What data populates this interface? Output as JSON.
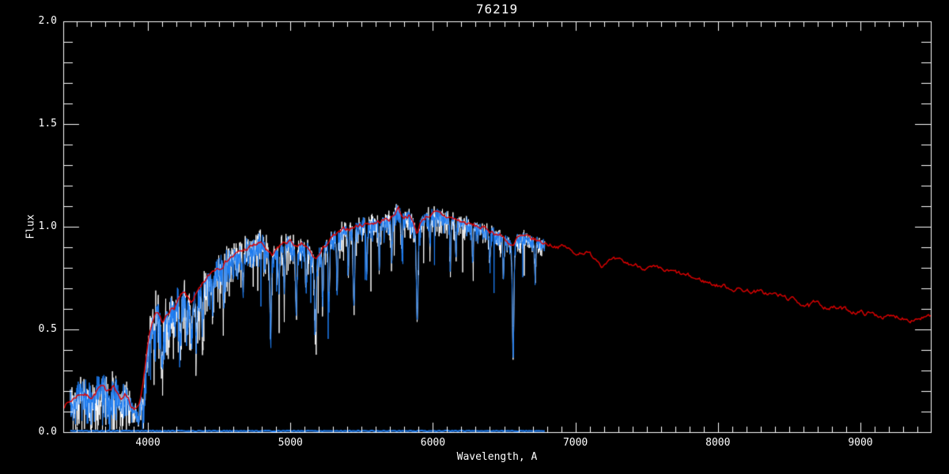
{
  "figure": {
    "background_color": "#000000",
    "axis_color": "#FFFFFF",
    "text_color": "#FFFFFF"
  },
  "chart_data": {
    "type": "line",
    "title": "76219",
    "xlabel": "Wavelength, A",
    "ylabel": "Flux",
    "xlim": [
      3406,
      9494
    ],
    "ylim": [
      0.0,
      2.0
    ],
    "grid": false,
    "legend": null,
    "x_ticks": {
      "major_values": [
        4000,
        5000,
        6000,
        7000,
        8000,
        9000
      ],
      "major_labels": [
        "4000",
        "5000",
        "6000",
        "7000",
        "8000",
        "9000"
      ],
      "minor_step": 100
    },
    "y_ticks": {
      "major_values": [
        0.0,
        0.5,
        1.0,
        1.5,
        2.0
      ],
      "major_labels": [
        "0.0",
        "0.5",
        "1.0",
        "1.5",
        "2.0"
      ],
      "minor_step": 0.1
    },
    "series": [
      {
        "name": "observed-spectrum-underlay",
        "description": "observed spectrum noise extremes (white, drawn beneath)",
        "color": "#FFFFFF",
        "x_range": [
          3455,
          6785
        ],
        "amp_scale": 1.35,
        "seed": 101,
        "line_width": 1
      },
      {
        "name": "observed-spectrum",
        "description": "observed spectrum (blue)",
        "color": "#1E7DF2",
        "x_range": [
          3455,
          6785
        ],
        "amp_scale": 1.0,
        "seed": 77,
        "line_width": 1
      },
      {
        "name": "error-spectrum",
        "description": "error spectrum along flux=0 (blue)",
        "color": "#1E7DF2",
        "x_range": [
          3455,
          6785
        ],
        "flux_level": 0.006,
        "line_width": 2
      },
      {
        "name": "model-spectrum",
        "description": "best-fit model spectrum (red), continues beyond observed range",
        "color": "#E00000",
        "x_range": [
          3406,
          9494
        ],
        "step_A": 8,
        "jitter": 0.018,
        "seed": 7,
        "line_width": 1.4
      }
    ],
    "continuum_anchors": [
      [
        3406,
        0.13
      ],
      [
        3430,
        0.14
      ],
      [
        3455,
        0.15
      ],
      [
        3480,
        0.165
      ],
      [
        3505,
        0.18
      ],
      [
        3530,
        0.19
      ],
      [
        3555,
        0.185
      ],
      [
        3580,
        0.175
      ],
      [
        3605,
        0.175
      ],
      [
        3630,
        0.19
      ],
      [
        3655,
        0.215
      ],
      [
        3680,
        0.215
      ],
      [
        3705,
        0.2
      ],
      [
        3730,
        0.215
      ],
      [
        3760,
        0.235
      ],
      [
        3785,
        0.185
      ],
      [
        3810,
        0.155
      ],
      [
        3835,
        0.19
      ],
      [
        3860,
        0.175
      ],
      [
        3885,
        0.125
      ],
      [
        3905,
        0.105
      ],
      [
        3925,
        0.11
      ],
      [
        3945,
        0.15
      ],
      [
        3965,
        0.22
      ],
      [
        3985,
        0.33
      ],
      [
        4005,
        0.44
      ],
      [
        4030,
        0.53
      ],
      [
        4055,
        0.58
      ],
      [
        4080,
        0.56
      ],
      [
        4105,
        0.52
      ],
      [
        4130,
        0.57
      ],
      [
        4155,
        0.6
      ],
      [
        4180,
        0.6
      ],
      [
        4205,
        0.63
      ],
      [
        4230,
        0.66
      ],
      [
        4255,
        0.67
      ],
      [
        4280,
        0.65
      ],
      [
        4300,
        0.63
      ],
      [
        4320,
        0.65
      ],
      [
        4350,
        0.68
      ],
      [
        4375,
        0.7
      ],
      [
        4400,
        0.73
      ],
      [
        4420,
        0.75
      ],
      [
        4450,
        0.78
      ],
      [
        4480,
        0.8
      ],
      [
        4510,
        0.81
      ],
      [
        4540,
        0.83
      ],
      [
        4570,
        0.85
      ],
      [
        4600,
        0.86
      ],
      [
        4630,
        0.87
      ],
      [
        4660,
        0.88
      ],
      [
        4690,
        0.89
      ],
      [
        4720,
        0.9
      ],
      [
        4750,
        0.91
      ],
      [
        4780,
        0.92
      ],
      [
        4810,
        0.91
      ],
      [
        4840,
        0.88
      ],
      [
        4870,
        0.85
      ],
      [
        4900,
        0.88
      ],
      [
        4930,
        0.91
      ],
      [
        4960,
        0.92
      ],
      [
        4990,
        0.93
      ],
      [
        5020,
        0.92
      ],
      [
        5050,
        0.89
      ],
      [
        5080,
        0.91
      ],
      [
        5110,
        0.9
      ],
      [
        5140,
        0.87
      ],
      [
        5170,
        0.84
      ],
      [
        5200,
        0.86
      ],
      [
        5240,
        0.9
      ],
      [
        5270,
        0.93
      ],
      [
        5300,
        0.95
      ],
      [
        5350,
        0.97
      ],
      [
        5400,
        0.99
      ],
      [
        5450,
        1.0
      ],
      [
        5500,
        1.01
      ],
      [
        5550,
        1.02
      ],
      [
        5600,
        1.02
      ],
      [
        5650,
        1.03
      ],
      [
        5700,
        1.04
      ],
      [
        5730,
        1.06
      ],
      [
        5755,
        1.1
      ],
      [
        5775,
        1.06
      ],
      [
        5800,
        1.05
      ],
      [
        5830,
        1.06
      ],
      [
        5860,
        1.02
      ],
      [
        5890,
        0.97
      ],
      [
        5920,
        1.03
      ],
      [
        5950,
        1.05
      ],
      [
        5980,
        1.06
      ],
      [
        6010,
        1.065
      ],
      [
        6040,
        1.06
      ],
      [
        6080,
        1.05
      ],
      [
        6120,
        1.045
      ],
      [
        6160,
        1.035
      ],
      [
        6200,
        1.025
      ],
      [
        6240,
        1.015
      ],
      [
        6280,
        1.005
      ],
      [
        6320,
        1.0
      ],
      [
        6360,
        0.99
      ],
      [
        6400,
        0.98
      ],
      [
        6440,
        0.97
      ],
      [
        6470,
        0.96
      ],
      [
        6500,
        0.945
      ],
      [
        6530,
        0.925
      ],
      [
        6565,
        0.9
      ],
      [
        6590,
        0.94
      ],
      [
        6620,
        0.95
      ],
      [
        6650,
        0.945
      ],
      [
        6685,
        0.94
      ],
      [
        6720,
        0.935
      ],
      [
        6755,
        0.925
      ],
      [
        6785,
        0.92
      ],
      [
        6850,
        0.91
      ],
      [
        6900,
        0.905
      ],
      [
        6950,
        0.895
      ],
      [
        6990,
        0.865
      ],
      [
        7020,
        0.875
      ],
      [
        7060,
        0.88
      ],
      [
        7100,
        0.865
      ],
      [
        7150,
        0.845
      ],
      [
        7190,
        0.815
      ],
      [
        7220,
        0.84
      ],
      [
        7260,
        0.835
      ],
      [
        7300,
        0.83
      ],
      [
        7350,
        0.82
      ],
      [
        7400,
        0.815
      ],
      [
        7450,
        0.81
      ],
      [
        7500,
        0.8
      ],
      [
        7550,
        0.795
      ],
      [
        7600,
        0.785
      ],
      [
        7650,
        0.78
      ],
      [
        7700,
        0.775
      ],
      [
        7750,
        0.765
      ],
      [
        7800,
        0.755
      ],
      [
        7850,
        0.745
      ],
      [
        7900,
        0.735
      ],
      [
        7950,
        0.725
      ],
      [
        8000,
        0.715
      ],
      [
        8050,
        0.71
      ],
      [
        8100,
        0.7
      ],
      [
        8150,
        0.695
      ],
      [
        8200,
        0.69
      ],
      [
        8250,
        0.685
      ],
      [
        8300,
        0.68
      ],
      [
        8350,
        0.675
      ],
      [
        8400,
        0.67
      ],
      [
        8450,
        0.66
      ],
      [
        8500,
        0.65
      ],
      [
        8550,
        0.64
      ],
      [
        8600,
        0.625
      ],
      [
        8640,
        0.61
      ],
      [
        8670,
        0.625
      ],
      [
        8700,
        0.62
      ],
      [
        8740,
        0.615
      ],
      [
        8780,
        0.61
      ],
      [
        8820,
        0.605
      ],
      [
        8860,
        0.6
      ],
      [
        8900,
        0.595
      ],
      [
        8940,
        0.59
      ],
      [
        8980,
        0.585
      ],
      [
        9020,
        0.58
      ],
      [
        9060,
        0.578
      ],
      [
        9100,
        0.572
      ],
      [
        9140,
        0.568
      ],
      [
        9180,
        0.56
      ],
      [
        9220,
        0.558
      ],
      [
        9260,
        0.562
      ],
      [
        9300,
        0.56
      ],
      [
        9340,
        0.552
      ],
      [
        9380,
        0.553
      ],
      [
        9420,
        0.558
      ],
      [
        9460,
        0.56
      ],
      [
        9494,
        0.558
      ]
    ],
    "absorption_lines": [
      [
        3735,
        0.3,
        8
      ],
      [
        3934,
        0.45,
        7
      ],
      [
        3968,
        0.42,
        7
      ],
      [
        4045,
        0.2,
        4
      ],
      [
        4101,
        0.32,
        6
      ],
      [
        4144,
        0.2,
        4
      ],
      [
        4226,
        0.3,
        5
      ],
      [
        4271,
        0.22,
        4
      ],
      [
        4305,
        0.25,
        7
      ],
      [
        4340,
        0.32,
        5
      ],
      [
        4383,
        0.3,
        4
      ],
      [
        4455,
        0.2,
        4
      ],
      [
        4531,
        0.2,
        4
      ],
      [
        4668,
        0.22,
        4
      ],
      [
        4861,
        0.45,
        5
      ],
      [
        4920,
        0.22,
        4
      ],
      [
        4957,
        0.22,
        4
      ],
      [
        5041,
        0.35,
        5
      ],
      [
        5110,
        0.22,
        4
      ],
      [
        5175,
        0.42,
        6
      ],
      [
        5227,
        0.28,
        4
      ],
      [
        5270,
        0.3,
        5
      ],
      [
        5328,
        0.25,
        4
      ],
      [
        5406,
        0.22,
        4
      ],
      [
        5446,
        0.38,
        5
      ],
      [
        5535,
        0.25,
        4
      ],
      [
        5624,
        0.22,
        4
      ],
      [
        5711,
        0.2,
        4
      ],
      [
        5782,
        0.18,
        4
      ],
      [
        5890,
        0.42,
        6
      ],
      [
        5980,
        0.15,
        4
      ],
      [
        6122,
        0.2,
        4
      ],
      [
        6162,
        0.18,
        4
      ],
      [
        6280,
        0.18,
        4
      ],
      [
        6400,
        0.15,
        4
      ],
      [
        6495,
        0.2,
        4
      ],
      [
        6563,
        0.58,
        5
      ],
      [
        6717,
        0.18,
        4
      ]
    ],
    "noise": {
      "step_A": 2.0,
      "deep_line_prob": 0.018,
      "deep_line_max": 0.35,
      "rel_amp_profile": [
        [
          3455,
          1.0
        ],
        [
          3800,
          0.85
        ],
        [
          4000,
          0.45
        ],
        [
          4200,
          0.28
        ],
        [
          4600,
          0.16
        ],
        [
          5000,
          0.11
        ],
        [
          5400,
          0.085
        ],
        [
          6000,
          0.075
        ],
        [
          6785,
          0.065
        ]
      ]
    }
  }
}
